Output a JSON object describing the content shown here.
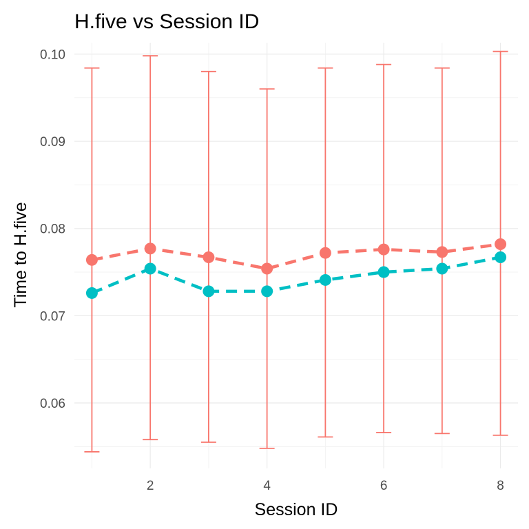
{
  "chart_data": {
    "type": "line",
    "title": "H.five vs Session ID",
    "xlabel": "Session ID",
    "ylabel": "Time to H.five",
    "xlim": [
      0.7,
      8.3
    ],
    "ylim": [
      0.0525,
      0.1013
    ],
    "x_ticks": [
      2,
      4,
      6,
      8
    ],
    "x_tick_labels": [
      "2",
      "4",
      "6",
      "8"
    ],
    "y_ticks": [
      0.06,
      0.07,
      0.08,
      0.09,
      0.1
    ],
    "y_tick_labels": [
      "0.06",
      "0.07",
      "0.08",
      "0.09",
      "0.10"
    ],
    "grid": true,
    "legend": "none",
    "line_style": "dashed",
    "x": [
      1,
      2,
      3,
      4,
      5,
      6,
      7,
      8
    ],
    "series": [
      {
        "color": "#f8766d",
        "values": [
          0.0764,
          0.0777,
          0.0767,
          0.0754,
          0.0772,
          0.0776,
          0.0773,
          0.0782
        ],
        "error_low": [
          0.0544,
          0.0558,
          0.0555,
          0.0548,
          0.0561,
          0.0566,
          0.0565,
          0.0563
        ],
        "error_high": [
          0.0984,
          0.0998,
          0.098,
          0.096,
          0.0984,
          0.0988,
          0.0984,
          0.1003
        ]
      },
      {
        "color": "#00bfc4",
        "values": [
          0.0726,
          0.0754,
          0.0728,
          0.0728,
          0.0741,
          0.075,
          0.0754,
          0.0767
        ]
      }
    ]
  }
}
